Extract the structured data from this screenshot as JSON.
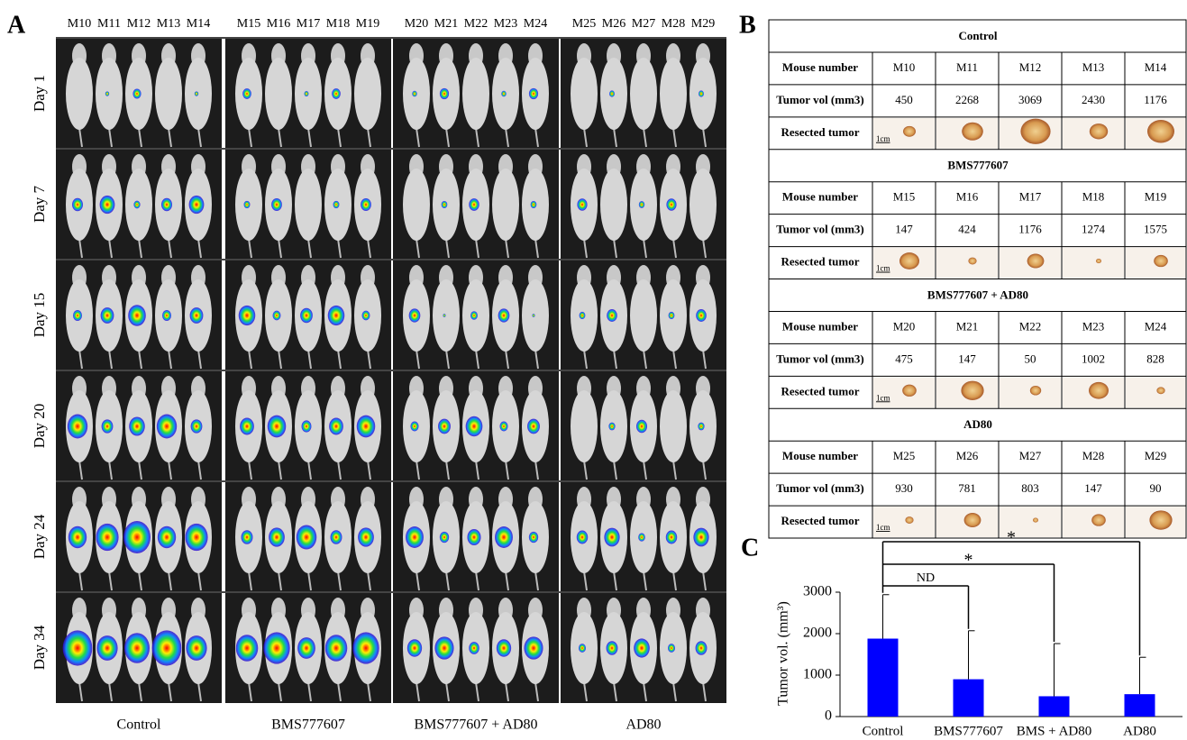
{
  "panel_a": {
    "label": "A",
    "mouse_ids": [
      [
        "M10",
        "M11",
        "M12",
        "M13",
        "M14"
      ],
      [
        "M15",
        "M16",
        "M17",
        "M18",
        "M19"
      ],
      [
        "M20",
        "M21",
        "M22",
        "M23",
        "M24"
      ],
      [
        "M25",
        "M26",
        "M27",
        "M28",
        "M29"
      ]
    ],
    "days": [
      "Day 1",
      "Day 7",
      "Day 15",
      "Day 20",
      "Day 24",
      "Day 34"
    ],
    "groups": [
      "Control",
      "BMS777607",
      "BMS777607 + AD80",
      "AD80"
    ]
  },
  "panel_b": {
    "label": "B",
    "row_labels": [
      "Mouse number",
      "Tumor vol (mm3)",
      "Resected tumor"
    ],
    "scale_label": "1cm",
    "groups": [
      {
        "title": "Control",
        "mouse_numbers": [
          "M10",
          "M11",
          "M12",
          "M13",
          "M14"
        ],
        "tumor_vol": [
          450,
          2268,
          3069,
          2430,
          1176
        ]
      },
      {
        "title": "BMS777607",
        "mouse_numbers": [
          "M15",
          "M16",
          "M17",
          "M18",
          "M19"
        ],
        "tumor_vol": [
          147,
          424,
          1176,
          1274,
          1575
        ]
      },
      {
        "title": "BMS777607 + AD80",
        "mouse_numbers": [
          "M20",
          "M21",
          "M22",
          "M23",
          "M24"
        ],
        "tumor_vol": [
          475,
          147,
          50,
          1002,
          828
        ]
      },
      {
        "title": "AD80",
        "mouse_numbers": [
          "M25",
          "M26",
          "M27",
          "M28",
          "M29"
        ],
        "tumor_vol": [
          930,
          781,
          803,
          147,
          90
        ]
      }
    ]
  },
  "panel_c": {
    "label": "C"
  },
  "chart_data": {
    "type": "bar",
    "y_label": "Tumor vol. (mm³)",
    "categories": [
      "Control",
      "BMS777607",
      "BMS + AD80",
      "AD80"
    ],
    "values": [
      1880,
      900,
      490,
      540
    ],
    "errors": [
      1060,
      1170,
      1270,
      890
    ],
    "color": "#0000ff",
    "ylim": [
      0,
      3000
    ],
    "yticks": [
      0,
      1000,
      2000,
      3000
    ],
    "significance": [
      "ND",
      "*",
      "*"
    ]
  }
}
